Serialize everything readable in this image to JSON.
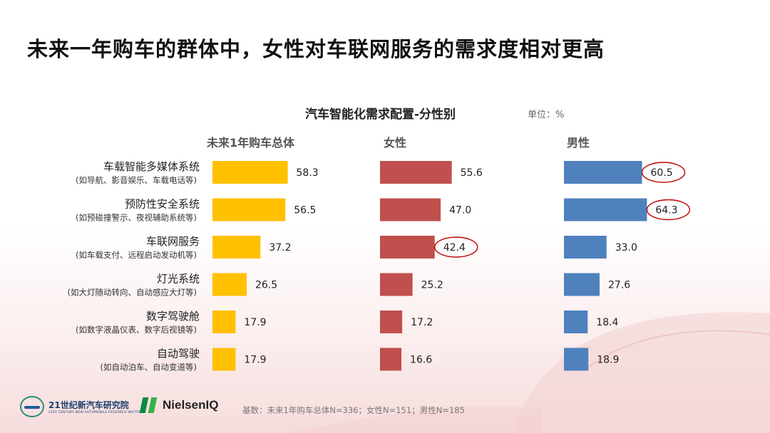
{
  "title": "未来一年购车的群体中，女性对车联网服务的需求度相对更高",
  "unit_label": "单位：%",
  "footnote": "基数：未来1年购车总体N=336；女性N=151；男性N=185",
  "logos": {
    "org1_cn": "21世纪新汽车研究院",
    "org1_en": "21ST CENTURY NEW AUTOMOBILE RESEARCH INSTITUTE",
    "org2": "NielsenIQ",
    "org1_icon": "car-ring-logo-icon",
    "org2_icon": "nielsen-n-logo-icon"
  },
  "chart_data": {
    "type": "bar",
    "orientation": "horizontal",
    "title": "汽车智能化需求配置-分性别",
    "categories": [
      {
        "name": "车载智能多媒体系统",
        "note": "(如导航、影音娱乐、车载电话等)"
      },
      {
        "name": "预防性安全系统",
        "note": "(如预碰撞警示、夜视辅助系统等)"
      },
      {
        "name": "车联网服务",
        "note": "(如车载支付、远程启动发动机等)"
      },
      {
        "name": "灯光系统",
        "note": "(如大灯随动转向、自动感应大灯等)"
      },
      {
        "name": "数字驾驶舱",
        "note": "(如数字液晶仪表、数字后视镜等)"
      },
      {
        "name": "自动驾驶",
        "note": "(如自动泊车、自动变道等)"
      }
    ],
    "series": [
      {
        "name": "未来1年购车总体",
        "color": "#ffc000",
        "values": [
          58.3,
          56.5,
          37.2,
          26.5,
          17.9,
          17.9
        ],
        "highlight": []
      },
      {
        "name": "女性",
        "color": "#c0504d",
        "values": [
          55.6,
          47.0,
          42.4,
          25.2,
          17.2,
          16.6
        ],
        "highlight": [
          2
        ]
      },
      {
        "name": "男性",
        "color": "#4f81bd",
        "values": [
          60.5,
          64.3,
          33.0,
          27.6,
          18.4,
          18.9
        ],
        "highlight": [
          0,
          1
        ]
      }
    ],
    "highlight_color": "#c00000",
    "xlim": [
      0,
      100
    ],
    "grid": false,
    "legend": "none"
  }
}
